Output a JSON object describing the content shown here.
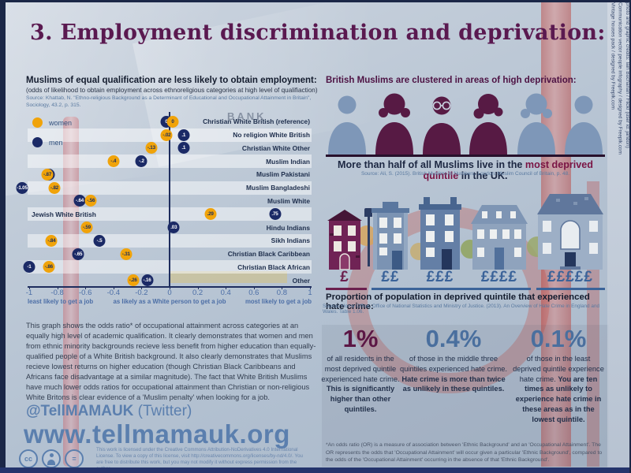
{
  "title": "3. Employment discrimination and deprivation:",
  "background": {
    "bank_sign": "BANK"
  },
  "credits": [
    "photo and graphic credits: Iain Buchanan / Flickr (user id: jandon)",
    "Communication vector people infography / designed by Freepik.com",
    "Vintage houses pack / designed by Freepik.com"
  ],
  "colors": {
    "women_marker": "#f0a30a",
    "men_marker": "#1b2a66",
    "title_purple": "#5a1950",
    "accent_purple": "#7a1444",
    "stat_blue": "#4a6f9e",
    "steel_blue": "#5b7fae"
  },
  "left": {
    "heading": "Muslims of equal qualification are less likely to obtain employment:",
    "subheading": "(odds of likelihood to obtain employment across ethnoreligious categories at high level of qualifiaction)",
    "source": "Source: Khattab, N. \"Ethno-religious Background as a Determinant of Educational and Occupational Attainment in Britain\", Sociology, 43.2, p. 315.",
    "paragraph": "This graph shows the odds ratio* of occupational attainment across categories at an equally high level of academic qualification. It clearly demonstrates that women and men from ethnic minority backgrounds recieve less benefit from higher education than equally-qualified people of a White British background. It also clearly demonstrates that Muslims recieve lowest returns on higher education (though Christian Black Caribbeans and Africans face disadvantage at a similar magnitude). The fact that White British Muslims have much lower odds ratios for occupational attainment than Christian or non-religious White Britons is clear evidence of a 'Muslim penalty' when looking for a job.",
    "twitter_handle": "@TellMAMAUK",
    "twitter_suffix": " (Twitter)",
    "website": "www.tellmamauk.org",
    "license": "This work is licensed under the Creative Commons Attribution-NoDerivatives 4.0 International License. To view a copy of this license, visit http://creativecommons.org/licenses/by-nd/4.0/. You are free to distribute this work, but you may not modify it without express permission from the author."
  },
  "chart_data": {
    "type": "scatter",
    "title": "odds of likelihood to obtain employment across ethnoreligious categories at high level of qualification",
    "xlim": [
      -1,
      1
    ],
    "x_ticks": [
      -1,
      -0.8,
      -0.6,
      -0.4,
      -0.2,
      0,
      0.2,
      0.4,
      0.6,
      0.8,
      1
    ],
    "x_captions": [
      "least likely to get a job",
      "as likely as a White person to get a job",
      "most likely to get a job"
    ],
    "legend": [
      {
        "name": "women",
        "color": "#f0a30a"
      },
      {
        "name": "men",
        "color": "#1b2a66"
      }
    ],
    "categories": [
      {
        "name": "Christian White British (reference)",
        "women": 0,
        "men": 0,
        "women_label": "0",
        "men_label": "0"
      },
      {
        "name": "No religion White British",
        "women": -0.02,
        "men": 0.1,
        "women_label": "-.02",
        "men_label": ".1"
      },
      {
        "name": "Christian White Other",
        "women": -0.13,
        "men": 0.1,
        "women_label": "-.13",
        "men_label": ".1"
      },
      {
        "name": "Muslim Indian",
        "women": -0.4,
        "men": -0.2,
        "women_label": "-.4",
        "men_label": "-.2"
      },
      {
        "name": "Muslim Pakistani",
        "women": -0.87,
        "men": -0.86,
        "women_label": "-.87",
        "men_label": "-.86"
      },
      {
        "name": "Muslim Bangladeshi",
        "women": -0.82,
        "men": -1.05,
        "women_label": "-.82",
        "men_label": "-1.05"
      },
      {
        "name": "Muslim White",
        "women": -0.56,
        "men": -0.64,
        "women_label": "-.56",
        "men_label": "-.64"
      },
      {
        "name": "Jewish White British",
        "women": 0.29,
        "men": 0.75,
        "women_label": ".29",
        "men_label": ".75",
        "label_side": "left"
      },
      {
        "name": "Hindu Indians",
        "women": -0.59,
        "men": 0.03,
        "women_label": "-.59",
        "men_label": ".03"
      },
      {
        "name": "Sikh Indians",
        "women": -0.84,
        "men": -0.5,
        "women_label": "-.84",
        "men_label": "-.5"
      },
      {
        "name": "Christian Black Caribbean",
        "women": -0.31,
        "men": -0.65,
        "women_label": "-.31",
        "men_label": "-.65"
      },
      {
        "name": "Christian Black African",
        "women": -0.86,
        "men": -1,
        "women_label": "-.86",
        "men_label": "-1"
      },
      {
        "name": "Other",
        "women": -0.26,
        "men": -0.16,
        "women_label": "-.26",
        "men_label": "-.16"
      }
    ]
  },
  "right": {
    "heading": "British Muslims are clustered in areas of high deprivation:",
    "note_prefix": "More than half of all Muslims live in the ",
    "note_bold": "most deprived quintile",
    "note_suffix": " in the UK.",
    "note_source": "Source: Ali, S. (2015). British Muslims in Numbers. London: Muslim Council of Britain, p. 48.",
    "pounds": [
      "£",
      "££",
      "£££",
      "££££",
      "£££££"
    ],
    "hate_heading": "Proportion of population in deprived quintile that experienced hate crime:",
    "hate_source": "Source: Home Office, Office of National Statistics and Ministry of Justice. (2013). An Overview of Hate Crime in England and Wales. Table 1.06.",
    "stats": [
      {
        "value": "1%",
        "text": "of all residents in the most deprived quintile experienced hate crime. ",
        "bold": "This is significantly higher than other quintiles."
      },
      {
        "value": "0.4%",
        "text": "of those in the middle three quintiles experienced hate crime. ",
        "bold": "Hate crime is more than twice as unlikely in these quintiles."
      },
      {
        "value": "0.1%",
        "text": "of those in the least deprived quintile experience hate crime. ",
        "bold": "You are ten times as unlikely to experience hate crime in these areas as in the lowest quintile."
      }
    ],
    "footnote": "*An odds ratio (OR) is a measure of association between 'Ethnic Background' and an 'Occupational Attainment'. The OR represents the odds that 'Occupational Attainment' will occur given a particular 'Ethnic Background', compared to the odds of the 'Occupational Attainment' occurring in the absence of that 'Ethnic Background'."
  }
}
